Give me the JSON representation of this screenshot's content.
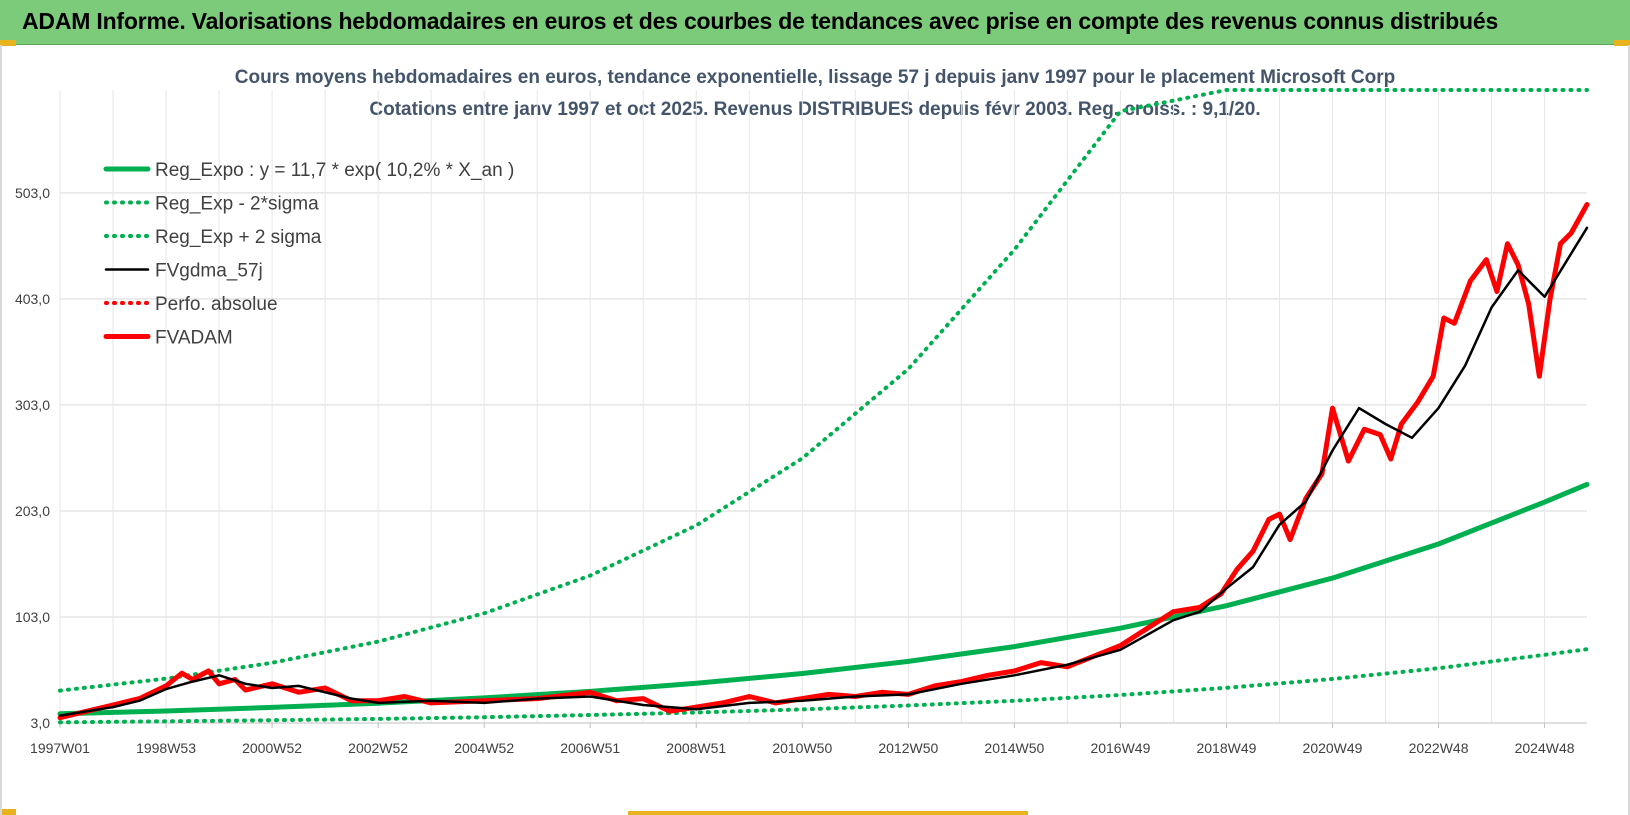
{
  "banner": {
    "title": "ADAM Informe. Valorisations hebdomadaires en euros et des courbes de tendances avec prise en compte des revenus connus distribués",
    "background": "#7ccb7a"
  },
  "chart_data": {
    "type": "line",
    "title": "Cours moyens hebdomadaires en euros, tendance exponentielle, lissage 57 j depuis janv 1997 pour le placement Microsoft Corp",
    "subtitle": "Cotations entre janv 1997 et oct 2025. Revenus DISTRIBUES depuis févr 2003. Reg. croiss. : 9,1/20.",
    "xlabel": "",
    "ylabel": "",
    "x_ticks": [
      "1997W01",
      "1998W53",
      "2000W52",
      "2002W52",
      "2004W52",
      "2006W51",
      "2008W51",
      "2010W50",
      "2012W50",
      "2014W50",
      "2016W49",
      "2018W49",
      "2020W49",
      "2022W48",
      "2024W48"
    ],
    "x_tick_years": [
      1997.0,
      1999.0,
      2001.0,
      2003.0,
      2005.0,
      2007.0,
      2009.0,
      2011.0,
      2013.0,
      2015.0,
      2017.0,
      2019.0,
      2021.0,
      2023.0,
      2025.0
    ],
    "y_ticks": [
      "3,0",
      "103,0",
      "203,0",
      "303,0",
      "403,0",
      "503,0"
    ],
    "y_tick_values": [
      3,
      103,
      203,
      303,
      403,
      503
    ],
    "xlim": [
      1997.0,
      2025.8
    ],
    "ylim": [
      3,
      600
    ],
    "grid": true,
    "legend_position": "top-left",
    "legend": [
      {
        "label": "Reg_Expo : y = 11,7 * exp( 10,2% *  X_an )",
        "color": "#00b050",
        "style": "solid-thick"
      },
      {
        "label": "Reg_Exp - 2*sigma",
        "color": "#00b050",
        "style": "dotted"
      },
      {
        "label": "Reg_Exp + 2 sigma",
        "color": "#00b050",
        "style": "dotted"
      },
      {
        "label": "FVgdma_57j",
        "color": "#000000",
        "style": "solid"
      },
      {
        "label": "Perfo. absolue",
        "color": "#ff0000",
        "style": "dotted"
      },
      {
        "label": "FVADAM",
        "color": "#ff0000",
        "style": "solid-thick"
      }
    ],
    "series": [
      {
        "name": "Reg_Expo : y = 11,7 * exp( 10,2% *  X_an )",
        "color": "#00b050",
        "x": [
          1997.0,
          1999.0,
          2001.0,
          2003.0,
          2005.0,
          2007.0,
          2009.0,
          2011.0,
          2013.0,
          2015.0,
          2017.0,
          2019.0,
          2021.0,
          2023.0,
          2025.0,
          2025.8
        ],
        "values": [
          11.7,
          14.3,
          17.7,
          21.7,
          26.7,
          32.8,
          40.4,
          49.7,
          61.1,
          75.1,
          92.4,
          113.6,
          139.7,
          171.8,
          211.3,
          228.0
        ]
      },
      {
        "name": "Reg_Exp - 2*sigma",
        "color": "#00b050",
        "x": [
          1997.0,
          1999.0,
          2001.0,
          2003.0,
          2005.0,
          2007.0,
          2009.0,
          2011.0,
          2013.0,
          2015.0,
          2017.0,
          2019.0,
          2021.0,
          2023.0,
          2025.0,
          2025.8
        ],
        "values": [
          3.7,
          4.6,
          5.6,
          6.9,
          8.5,
          10.5,
          12.9,
          15.8,
          19.5,
          23.9,
          29.4,
          36.2,
          44.5,
          54.7,
          67.3,
          72.6
        ]
      },
      {
        "name": "Reg_Exp + 2 sigma",
        "color": "#00b050",
        "x": [
          1997.0,
          1999.0,
          2001.0,
          2003.0,
          2005.0,
          2007.0,
          2009.0,
          2011.0,
          2013.0,
          2015.0,
          2017.0,
          2019.0,
          2021.0,
          2023.0,
          2025.0,
          2025.8
        ],
        "values": [
          33.6,
          44.9,
          59.8,
          79.8,
          106.5,
          142.0,
          189.4,
          252.6,
          336.9,
          449.4,
          580.0,
          600.0,
          600.0,
          600.0,
          600.0,
          600.0
        ]
      },
      {
        "name": "FVgdma_57j",
        "color": "#000000",
        "x": [
          1997.0,
          1997.5,
          1998.0,
          1998.5,
          1999.0,
          1999.5,
          2000.0,
          2000.5,
          2001.0,
          2001.5,
          2002.0,
          2002.5,
          2003.0,
          2004.0,
          2005.0,
          2006.0,
          2007.0,
          2008.0,
          2009.0,
          2010.0,
          2011.0,
          2012.0,
          2013.0,
          2014.0,
          2015.0,
          2016.0,
          2017.0,
          2018.0,
          2018.5,
          2019.0,
          2019.5,
          2020.0,
          2020.5,
          2021.0,
          2021.5,
          2022.0,
          2022.5,
          2023.0,
          2023.5,
          2024.0,
          2024.5,
          2025.0,
          2025.8
        ],
        "values": [
          10,
          14,
          18,
          24,
          35,
          42,
          48,
          40,
          36,
          38,
          32,
          26,
          22,
          24,
          22,
          26,
          28,
          20,
          16,
          22,
          24,
          28,
          30,
          40,
          48,
          58,
          72,
          100,
          108,
          130,
          150,
          190,
          212,
          260,
          300,
          285,
          272,
          300,
          340,
          395,
          430,
          405,
          470
        ]
      },
      {
        "name": "FVADAM",
        "color": "#ff0000",
        "x": [
          1997.0,
          1997.5,
          1998.0,
          1998.5,
          1999.0,
          1999.3,
          1999.5,
          1999.8,
          2000.0,
          2000.3,
          2000.5,
          2001.0,
          2001.5,
          2002.0,
          2002.5,
          2003.0,
          2003.5,
          2004.0,
          2005.0,
          2006.0,
          2007.0,
          2007.5,
          2008.0,
          2008.5,
          2009.0,
          2009.5,
          2010.0,
          2010.5,
          2011.0,
          2011.5,
          2012.0,
          2012.5,
          2013.0,
          2013.5,
          2014.0,
          2014.5,
          2015.0,
          2015.5,
          2016.0,
          2016.5,
          2017.0,
          2017.5,
          2018.0,
          2018.5,
          2018.9,
          2019.2,
          2019.5,
          2019.8,
          2020.0,
          2020.2,
          2020.5,
          2020.8,
          2021.0,
          2021.3,
          2021.6,
          2021.9,
          2022.1,
          2022.3,
          2022.6,
          2022.9,
          2023.1,
          2023.3,
          2023.6,
          2023.9,
          2024.1,
          2024.3,
          2024.5,
          2024.7,
          2024.9,
          2025.1,
          2025.3,
          2025.5,
          2025.8
        ],
        "values": [
          8,
          14,
          20,
          26,
          38,
          50,
          44,
          52,
          40,
          44,
          34,
          40,
          32,
          36,
          24,
          24,
          28,
          22,
          24,
          26,
          32,
          24,
          26,
          14,
          18,
          22,
          28,
          22,
          26,
          30,
          28,
          32,
          30,
          38,
          42,
          48,
          52,
          60,
          56,
          66,
          76,
          92,
          108,
          112,
          125,
          148,
          165,
          195,
          200,
          176,
          215,
          238,
          300,
          250,
          280,
          275,
          252,
          285,
          305,
          330,
          385,
          380,
          420,
          440,
          410,
          455,
          435,
          398,
          330,
          402,
          455,
          465,
          492
        ]
      }
    ]
  }
}
